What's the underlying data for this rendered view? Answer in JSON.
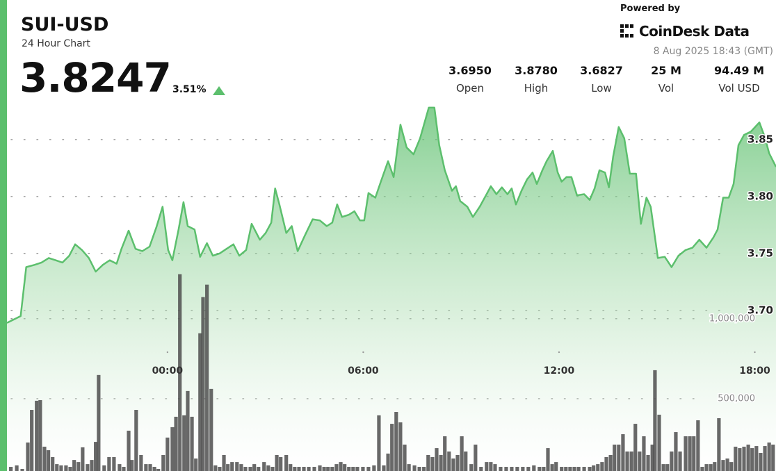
{
  "header": {
    "title": "SUI-USD",
    "subtitle": "24 Hour Chart",
    "price": "3.8247",
    "change": "3.51%",
    "powered_by": "Powered by",
    "brand": "CoinDesk Data",
    "timestamp": "8 Aug 2025 18:43 (GMT)",
    "stats": [
      {
        "value": "3.6950",
        "label": "Open"
      },
      {
        "value": "3.8780",
        "label": "High"
      },
      {
        "value": "3.6827",
        "label": "Low"
      },
      {
        "value": "25 M",
        "label": "Vol"
      },
      {
        "value": "94.49 M",
        "label": "Vol USD"
      }
    ]
  },
  "chart_data": [
    {
      "type": "area",
      "color": "#5cbf6d",
      "grid": true,
      "x": [
        -4.92,
        -4.71,
        -4.5,
        -4.33,
        -4.07,
        -3.86,
        -3.64,
        -3.43,
        -3.22,
        -3.01,
        -2.83,
        -2.62,
        -2.41,
        -2.2,
        -1.98,
        -1.77,
        -1.56,
        -1.41,
        -1.19,
        -0.98,
        -0.77,
        -0.55,
        -0.34,
        -0.15,
        0.02,
        0.15,
        0.34,
        0.49,
        0.62,
        0.83,
        1.0,
        1.21,
        1.39,
        1.6,
        1.81,
        2.02,
        2.2,
        2.41,
        2.58,
        2.83,
        3.01,
        3.18,
        3.3,
        3.43,
        3.64,
        3.81,
        3.99,
        4.2,
        4.45,
        4.67,
        4.88,
        5.05,
        5.2,
        5.35,
        5.56,
        5.73,
        5.9,
        6.03,
        6.16,
        6.37,
        6.54,
        6.76,
        6.93,
        7.14,
        7.33,
        7.54,
        7.74,
        8.01,
        8.18,
        8.33,
        8.5,
        8.72,
        8.84,
        8.97,
        9.19,
        9.36,
        9.57,
        9.78,
        9.91,
        10.08,
        10.25,
        10.42,
        10.55,
        10.68,
        10.85,
        11.02,
        11.19,
        11.32,
        11.49,
        11.62,
        11.81,
        11.96,
        12.08,
        12.23,
        12.38,
        12.55,
        12.77,
        12.94,
        13.09,
        13.24,
        13.41,
        13.53,
        13.66,
        13.83,
        14.0,
        14.17,
        14.36,
        14.51,
        14.68,
        14.81,
        15.03,
        15.24,
        15.45,
        15.66,
        15.88,
        16.09,
        16.3,
        16.52,
        16.73,
        16.86,
        17.03,
        17.2,
        17.35,
        17.5,
        17.67,
        17.88,
        18.14,
        18.31,
        18.44,
        18.65
      ],
      "values": [
        3.689,
        3.692,
        3.695,
        3.738,
        3.74,
        3.742,
        3.746,
        3.744,
        3.742,
        3.748,
        3.758,
        3.753,
        3.746,
        3.734,
        3.74,
        3.744,
        3.741,
        3.754,
        3.77,
        3.754,
        3.752,
        3.756,
        3.773,
        3.791,
        3.753,
        3.744,
        3.771,
        3.795,
        3.774,
        3.771,
        3.747,
        3.759,
        3.748,
        3.75,
        3.754,
        3.758,
        3.748,
        3.753,
        3.776,
        3.762,
        3.768,
        3.777,
        3.807,
        3.793,
        3.768,
        3.774,
        3.752,
        3.765,
        3.78,
        3.779,
        3.774,
        3.777,
        3.793,
        3.782,
        3.784,
        3.787,
        3.779,
        3.779,
        3.803,
        3.799,
        3.813,
        3.831,
        3.817,
        3.863,
        3.843,
        3.837,
        3.851,
        3.878,
        3.878,
        3.845,
        3.823,
        3.805,
        3.809,
        3.796,
        3.791,
        3.782,
        3.791,
        3.802,
        3.809,
        3.802,
        3.808,
        3.802,
        3.807,
        3.793,
        3.805,
        3.815,
        3.821,
        3.811,
        3.823,
        3.831,
        3.84,
        3.821,
        3.813,
        3.817,
        3.817,
        3.801,
        3.802,
        3.797,
        3.807,
        3.823,
        3.821,
        3.808,
        3.835,
        3.861,
        3.851,
        3.82,
        3.82,
        3.776,
        3.799,
        3.791,
        3.746,
        3.747,
        3.738,
        3.748,
        3.753,
        3.755,
        3.762,
        3.755,
        3.764,
        3.771,
        3.799,
        3.799,
        3.811,
        3.845,
        3.854,
        3.857,
        3.865,
        3.852,
        3.838,
        3.826
      ],
      "xlim": [
        -4.92,
        18.65
      ],
      "xticks": [
        {
          "value": 0,
          "label": "00:00"
        },
        {
          "value": 6,
          "label": "06:00"
        },
        {
          "value": 12,
          "label": "12:00"
        },
        {
          "value": 18,
          "label": "18:00"
        }
      ],
      "ylim": [
        3.559,
        3.881
      ],
      "yticks": [
        {
          "value": 3.7,
          "label": "3.70"
        },
        3.75,
        {
          "value": 3.8,
          "label": "3.80"
        },
        3.85
      ]
    },
    {
      "type": "bar",
      "color": "#4d4d4d",
      "grid": true,
      "x": [
        -4.8,
        -4.62,
        -4.45,
        -4.28,
        -4.16,
        -4.01,
        -3.9,
        -3.77,
        -3.65,
        -3.52,
        -3.39,
        -3.26,
        -3.11,
        -2.98,
        -2.86,
        -2.73,
        -2.6,
        -2.45,
        -2.32,
        -2.2,
        -2.11,
        -1.94,
        -1.79,
        -1.64,
        -1.47,
        -1.34,
        -1.19,
        -1.09,
        -0.96,
        -0.81,
        -0.66,
        -0.53,
        -0.4,
        -0.28,
        -0.13,
        0,
        0.15,
        0.26,
        0.38,
        0.51,
        0.62,
        0.75,
        0.87,
        1.0,
        1.09,
        1.21,
        1.34,
        1.47,
        1.6,
        1.73,
        1.85,
        1.98,
        2.13,
        2.26,
        2.39,
        2.54,
        2.66,
        2.79,
        2.96,
        3.09,
        3.22,
        3.35,
        3.47,
        3.64,
        3.77,
        3.9,
        4.03,
        4.18,
        4.33,
        4.5,
        4.67,
        4.8,
        4.92,
        5.05,
        5.18,
        5.31,
        5.43,
        5.56,
        5.69,
        5.82,
        5.99,
        6.16,
        6.33,
        6.48,
        6.63,
        6.76,
        6.88,
        7.01,
        7.14,
        7.27,
        7.4,
        7.57,
        7.72,
        7.86,
        7.99,
        8.12,
        8.25,
        8.38,
        8.5,
        8.63,
        8.76,
        8.89,
        9.02,
        9.14,
        9.31,
        9.44,
        9.61,
        9.78,
        9.91,
        10.04,
        10.21,
        10.38,
        10.55,
        10.72,
        10.89,
        11.06,
        11.23,
        11.4,
        11.53,
        11.66,
        11.79,
        11.91,
        12.08,
        12.21,
        12.34,
        12.47,
        12.6,
        12.77,
        12.94,
        13.06,
        13.19,
        13.32,
        13.45,
        13.58,
        13.7,
        13.83,
        13.96,
        14.09,
        14.22,
        14.34,
        14.47,
        14.6,
        14.73,
        14.86,
        14.94,
        15.07,
        15.2,
        15.32,
        15.45,
        15.58,
        15.71,
        15.88,
        16.01,
        16.13,
        16.26,
        16.39,
        16.52,
        16.65,
        16.77,
        16.9,
        17.03,
        17.16,
        17.28,
        17.41,
        17.54,
        17.67,
        17.8,
        17.92,
        18.05,
        18.18,
        18.31,
        18.44,
        18.56
      ],
      "values": [
        74000,
        83000,
        61000,
        226000,
        430000,
        487000,
        491000,
        200000,
        178000,
        135000,
        91000,
        83000,
        83000,
        74000,
        117000,
        104000,
        196000,
        91000,
        117000,
        230000,
        648000,
        83000,
        135000,
        135000,
        91000,
        74000,
        300000,
        117000,
        430000,
        148000,
        91000,
        91000,
        74000,
        61000,
        148000,
        257000,
        322000,
        387000,
        1278000,
        396000,
        548000,
        387000,
        126000,
        909000,
        1135000,
        1213000,
        561000,
        83000,
        74000,
        148000,
        91000,
        104000,
        104000,
        91000,
        74000,
        74000,
        91000,
        74000,
        104000,
        83000,
        74000,
        148000,
        135000,
        148000,
        91000,
        74000,
        74000,
        74000,
        74000,
        74000,
        83000,
        74000,
        74000,
        74000,
        91000,
        104000,
        91000,
        74000,
        74000,
        74000,
        74000,
        74000,
        83000,
        396000,
        83000,
        157000,
        343000,
        417000,
        352000,
        213000,
        91000,
        83000,
        74000,
        74000,
        148000,
        135000,
        191000,
        148000,
        265000,
        170000,
        126000,
        148000,
        265000,
        170000,
        91000,
        213000,
        74000,
        104000,
        104000,
        91000,
        74000,
        74000,
        74000,
        74000,
        74000,
        74000,
        83000,
        74000,
        74000,
        191000,
        91000,
        104000,
        74000,
        74000,
        74000,
        74000,
        74000,
        74000,
        74000,
        83000,
        91000,
        104000,
        135000,
        148000,
        213000,
        213000,
        278000,
        170000,
        170000,
        343000,
        170000,
        265000,
        148000,
        213000,
        678000,
        400000,
        91000,
        91000,
        170000,
        291000,
        170000,
        265000,
        265000,
        265000,
        365000,
        74000,
        91000,
        91000,
        104000,
        378000,
        117000,
        126000,
        104000,
        200000,
        191000,
        200000,
        213000,
        191000,
        204000,
        161000,
        204000,
        226000,
        213000
      ],
      "xlim": [
        -4.92,
        18.65
      ],
      "ylim": [
        48000,
        1850000
      ],
      "yticks": [
        {
          "value": 500000,
          "label": "500,000"
        },
        {
          "value": 1000000,
          "label": "1,000,000"
        }
      ]
    }
  ]
}
